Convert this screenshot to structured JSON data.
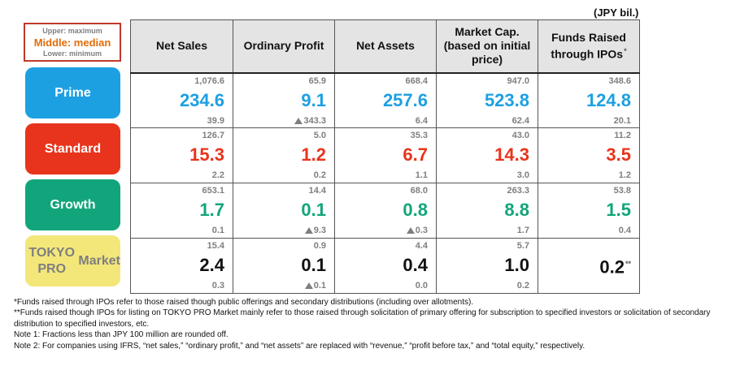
{
  "unit_label": "(JPY bil.)",
  "legend": {
    "upper": "Upper: maximum",
    "middle": "Middle: median",
    "lower": "Lower: minimum"
  },
  "columns": [
    {
      "label": "Net Sales"
    },
    {
      "label": "Ordinary Profit"
    },
    {
      "label": "Net Assets"
    },
    {
      "label": "Market Cap.\n(based on initial\nprice)"
    },
    {
      "label": "Funds Raised\nthrough IPOs",
      "mark": "*"
    }
  ],
  "segments": [
    {
      "name": "Prime",
      "pill_color": "#1ca0e2",
      "text_color": "#ffffff",
      "median_color": "#1ca0e2",
      "cells": [
        {
          "max": "1,076.6",
          "median": "234.6",
          "min": "39.9",
          "min_negative": false
        },
        {
          "max": "65.9",
          "median": "9.1",
          "min": "343.3",
          "min_negative": true
        },
        {
          "max": "668.4",
          "median": "257.6",
          "min": "6.4",
          "min_negative": false
        },
        {
          "max": "947.0",
          "median": "523.8",
          "min": "62.4",
          "min_negative": false
        },
        {
          "max": "348.6",
          "median": "124.8",
          "min": "20.1",
          "min_negative": false
        }
      ]
    },
    {
      "name": "Standard",
      "pill_color": "#e8341c",
      "text_color": "#ffffff",
      "median_color": "#e8341c",
      "cells": [
        {
          "max": "126.7",
          "median": "15.3",
          "min": "2.2",
          "min_negative": false
        },
        {
          "max": "5.0",
          "median": "1.2",
          "min": "0.2",
          "min_negative": false
        },
        {
          "max": "35.3",
          "median": "6.7",
          "min": "1.1",
          "min_negative": false
        },
        {
          "max": "43.0",
          "median": "14.3",
          "min": "3.0",
          "min_negative": false
        },
        {
          "max": "11.2",
          "median": "3.5",
          "min": "1.2",
          "min_negative": false
        }
      ]
    },
    {
      "name": "Growth",
      "pill_color": "#12a57b",
      "text_color": "#ffffff",
      "median_color": "#12a57b",
      "cells": [
        {
          "max": "653.1",
          "median": "1.7",
          "min": "0.1",
          "min_negative": false
        },
        {
          "max": "14.4",
          "median": "0.1",
          "min": "9.3",
          "min_negative": true
        },
        {
          "max": "68.0",
          "median": "0.8",
          "min": "0.3",
          "min_negative": true
        },
        {
          "max": "263.3",
          "median": "8.8",
          "min": "1.7",
          "min_negative": false
        },
        {
          "max": "53.8",
          "median": "1.5",
          "min": "0.4",
          "min_negative": false
        }
      ]
    },
    {
      "name": "TOKYO PRO\nMarket",
      "pill_color": "#f3e77a",
      "text_color": "#7f7f7f",
      "median_color": "#111111",
      "cells": [
        {
          "max": "15.4",
          "median": "2.4",
          "min": "0.3",
          "min_negative": false
        },
        {
          "max": "0.9",
          "median": "0.1",
          "min": "0.1",
          "min_negative": true
        },
        {
          "max": "4.4",
          "median": "0.4",
          "min": "0.0",
          "min_negative": false
        },
        {
          "max": "5.7",
          "median": "1.0",
          "min": "0.2",
          "min_negative": false
        },
        {
          "max": "",
          "median": "0.2",
          "min": "",
          "min_negative": false,
          "mark": "**"
        }
      ]
    }
  ],
  "notes": [
    "*Funds raised through IPOs refer to those raised though public offerings and secondary distributions (including over allotments).",
    "**Funds raised though IPOs for listing on TOKYO PRO Market mainly refer to those raised through solicitation of primary offering for subscription to specified investors or solicitation of secondary distribution to specified investors, etc.",
    "Note 1: Fractions less than JPY 100 million are rounded off.",
    "Note 2: For companies using IFRS, “net sales,” “ordinary profit,” and “net assets” are replaced with “revenue,” “profit before tax,” and “total equity,” respectively."
  ]
}
